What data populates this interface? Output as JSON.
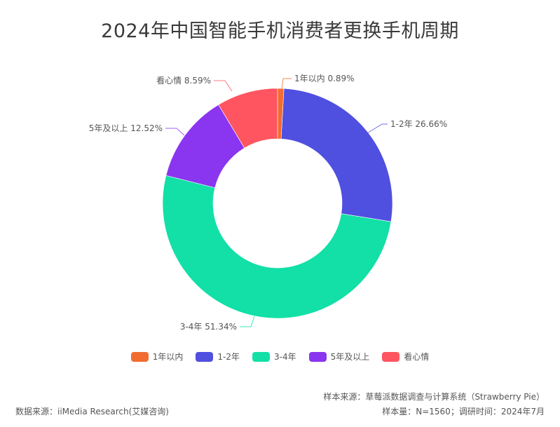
{
  "title": "2024年中国智能手机消费者更换手机周期",
  "chart_data": {
    "type": "pie",
    "variant": "donut",
    "title": "2024年中国智能手机消费者更换手机周期",
    "categories": [
      "1年以内",
      "1-2年",
      "3-4年",
      "5年及以上",
      "看心情"
    ],
    "values": [
      0.89,
      26.66,
      51.34,
      12.52,
      8.59
    ],
    "unit": "%",
    "colors": [
      "#f26b30",
      "#4f4fe0",
      "#12e0a6",
      "#8a35f0",
      "#ff5560"
    ],
    "labels": [
      "1年以内 0.89%",
      "1-2年 26.66%",
      "3-4年 51.34%",
      "5年及以上 12.52%",
      "看心情 8.59%"
    ],
    "legend_position": "bottom",
    "start_angle": "12 o'clock, clockwise"
  },
  "legend": [
    {
      "label": "1年以内",
      "color": "#f26b30"
    },
    {
      "label": "1-2年",
      "color": "#4f4fe0"
    },
    {
      "label": "3-4年",
      "color": "#12e0a6"
    },
    {
      "label": "5年及以上",
      "color": "#8a35f0"
    },
    {
      "label": "看心情",
      "color": "#ff5560"
    }
  ],
  "footer": {
    "data_source": "数据来源：iiMedia Research(艾媒咨询)",
    "sample_source": "样本来源：草莓派数据调查与计算系统（Strawberry Pie）",
    "sample_info": "样本量：N=1560；调研时间：2024年7月"
  }
}
